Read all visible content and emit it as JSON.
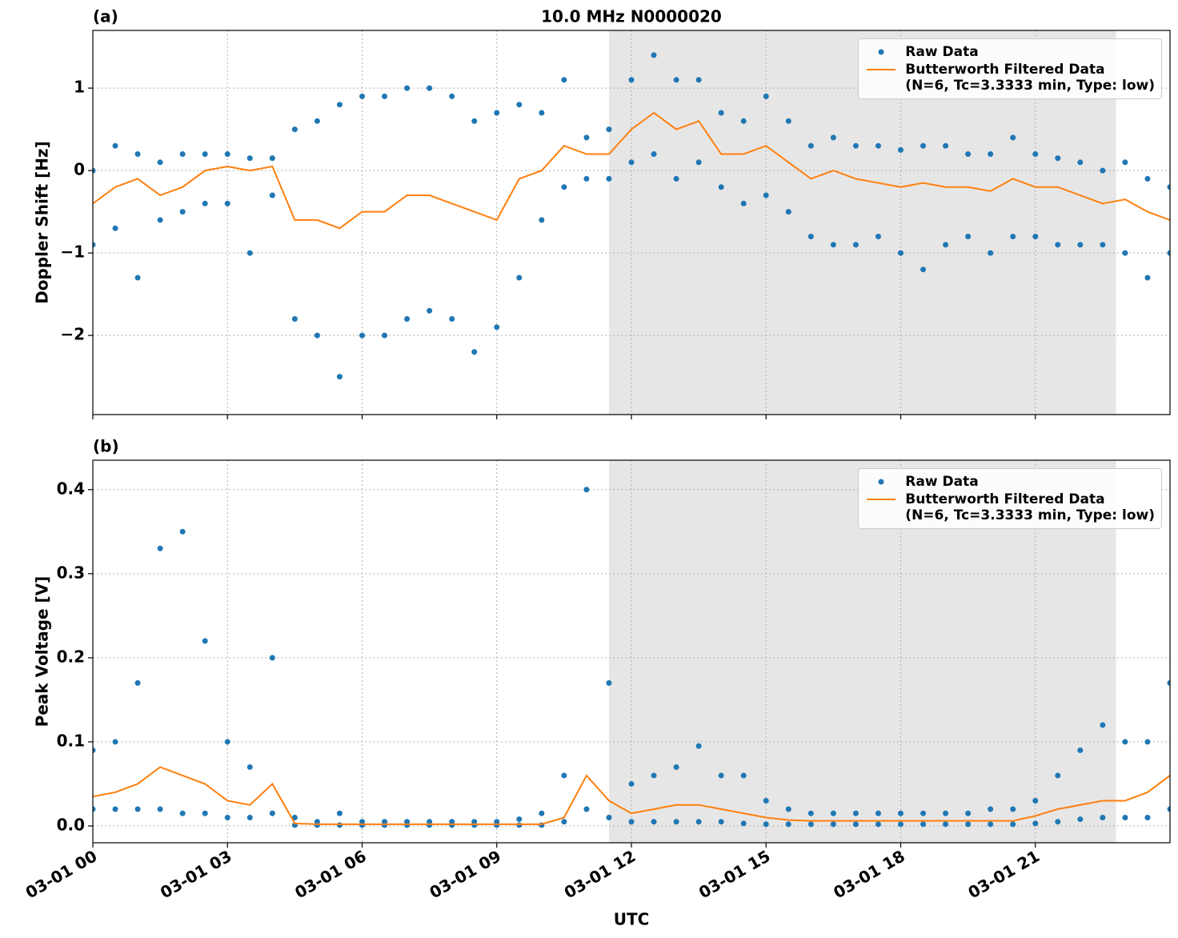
{
  "chart_data": [
    {
      "type": "line",
      "title": "10.0 MHz N0000020",
      "panel_label": "(a)",
      "ylabel": "Doppler Shift [Hz]",
      "xlim": [
        0,
        24
      ],
      "xticks": [
        0,
        3,
        6,
        9,
        12,
        15,
        18,
        21
      ],
      "ylim": [
        -2.96,
        1.7
      ],
      "yticks": [
        {
          "value": -2,
          "label": "−2"
        },
        {
          "value": -1,
          "label": "−1"
        },
        0,
        1
      ],
      "grid": true,
      "legend": "upper right",
      "shaded_span": [
        11.5,
        22.8
      ],
      "shade_color": "#e6e6e6",
      "series": [
        {
          "name": "Raw Data",
          "style": "points",
          "color": "#1f77b4",
          "x": [
            0,
            0.5,
            1,
            1.5,
            2,
            2.5,
            3,
            3.5,
            4,
            4.5,
            5,
            5.5,
            6,
            6.5,
            7,
            7.5,
            8,
            8.5,
            9,
            9.5,
            10,
            10.5,
            11,
            11.5,
            12,
            12.5,
            13,
            13.5,
            14,
            14.5,
            15,
            15.5,
            16,
            16.5,
            17,
            17.5,
            18,
            18.5,
            19,
            19.5,
            20,
            20.5,
            21,
            21.5,
            22,
            22.5,
            23,
            23.5,
            24,
            0,
            0.5,
            1,
            1.5,
            2,
            2.5,
            3,
            3.5,
            4,
            4.5,
            5,
            5.5,
            6,
            6.5,
            7,
            7.5,
            8,
            8.5,
            9,
            9.5,
            10,
            10.5,
            11,
            11.5,
            12,
            12.5,
            13,
            13.5,
            14,
            14.5,
            15,
            15.5,
            16,
            16.5,
            17,
            17.5,
            18,
            18.5,
            19,
            19.5,
            20,
            20.5,
            21,
            21.5,
            22,
            22.5,
            23,
            23.5,
            24
          ],
          "values": [
            0.0,
            0.3,
            0.2,
            0.1,
            0.2,
            0.2,
            0.2,
            0.15,
            0.15,
            0.5,
            0.6,
            0.8,
            0.9,
            0.9,
            1.0,
            1.0,
            0.9,
            0.6,
            0.7,
            0.8,
            0.7,
            1.1,
            0.4,
            0.5,
            1.1,
            1.4,
            1.1,
            1.1,
            0.7,
            0.6,
            0.9,
            0.6,
            0.3,
            0.4,
            0.3,
            0.3,
            0.25,
            0.3,
            0.3,
            0.2,
            0.2,
            0.4,
            0.2,
            0.15,
            0.1,
            0.0,
            0.1,
            -0.1,
            -0.2,
            -0.9,
            -0.7,
            -1.3,
            -0.6,
            -0.5,
            -0.4,
            -0.4,
            -1.0,
            -0.3,
            -1.8,
            -2.0,
            -2.5,
            -2.0,
            -2.0,
            -1.8,
            -1.7,
            -1.8,
            -2.2,
            -1.9,
            -1.3,
            -0.6,
            -0.2,
            -0.1,
            -0.1,
            0.1,
            0.2,
            -0.1,
            0.1,
            -0.2,
            -0.4,
            -0.3,
            -0.5,
            -0.8,
            -0.9,
            -0.9,
            -0.8,
            -1.0,
            -1.2,
            -0.9,
            -0.8,
            -1.0,
            -0.8,
            -0.8,
            -0.9,
            -0.9,
            -0.9,
            -1.0,
            -1.3,
            -1.0
          ]
        },
        {
          "name": "Butterworth Filtered Data\n(N=6, Tc=3.3333 min, Type: low)",
          "style": "line",
          "color": "#ff7f0e",
          "x": [
            0,
            0.5,
            1,
            1.5,
            2,
            2.5,
            3,
            3.5,
            4,
            4.5,
            5,
            5.5,
            6,
            6.5,
            7,
            7.5,
            8,
            8.5,
            9,
            9.5,
            10,
            10.5,
            11,
            11.5,
            12,
            12.5,
            13,
            13.5,
            14,
            14.5,
            15,
            15.5,
            16,
            16.5,
            17,
            17.5,
            18,
            18.5,
            19,
            19.5,
            20,
            20.5,
            21,
            21.5,
            22,
            22.5,
            23,
            23.5,
            24
          ],
          "values": [
            -0.4,
            -0.2,
            -0.1,
            -0.3,
            -0.2,
            0.0,
            0.05,
            0.0,
            0.05,
            -0.6,
            -0.6,
            -0.7,
            -0.5,
            -0.5,
            -0.3,
            -0.3,
            -0.4,
            -0.5,
            -0.6,
            -0.1,
            0.0,
            0.3,
            0.2,
            0.2,
            0.5,
            0.7,
            0.5,
            0.6,
            0.2,
            0.2,
            0.3,
            0.1,
            -0.1,
            0.0,
            -0.1,
            -0.15,
            -0.2,
            -0.15,
            -0.2,
            -0.2,
            -0.25,
            -0.1,
            -0.2,
            -0.2,
            -0.3,
            -0.4,
            -0.35,
            -0.5,
            -0.6
          ]
        }
      ]
    },
    {
      "type": "line",
      "panel_label": "(b)",
      "ylabel": "Peak Voltage [V]",
      "xlabel": "UTC",
      "xlim": [
        0,
        24
      ],
      "xticks": [
        {
          "value": 0,
          "label": "03-01 00"
        },
        {
          "value": 3,
          "label": "03-01 03"
        },
        {
          "value": 6,
          "label": "03-01 06"
        },
        {
          "value": 9,
          "label": "03-01 09"
        },
        {
          "value": 12,
          "label": "03-01 12"
        },
        {
          "value": 15,
          "label": "03-01 15"
        },
        {
          "value": 18,
          "label": "03-01 18"
        },
        {
          "value": 21,
          "label": "03-01 21"
        }
      ],
      "ylim": [
        -0.02,
        0.435
      ],
      "yticks": [
        {
          "value": 0,
          "label": "0.0"
        },
        0.1,
        0.2,
        0.3,
        0.4
      ],
      "grid": true,
      "legend": "upper right",
      "shaded_span": [
        11.5,
        22.8
      ],
      "shade_color": "#e6e6e6",
      "series": [
        {
          "name": "Raw Data",
          "style": "points",
          "color": "#1f77b4",
          "x": [
            0,
            0.5,
            1,
            1.5,
            2,
            2.5,
            3,
            3.5,
            4,
            4.5,
            5,
            5.5,
            6,
            6.5,
            7,
            7.5,
            8,
            8.5,
            9,
            9.5,
            10,
            10.5,
            11,
            11.5,
            12,
            12.5,
            13,
            13.5,
            14,
            14.5,
            15,
            15.5,
            16,
            16.5,
            17,
            17.5,
            18,
            18.5,
            19,
            19.5,
            20,
            20.5,
            21,
            21.5,
            22,
            22.5,
            23,
            23.5,
            24,
            0,
            0.5,
            1,
            1.5,
            2,
            2.5,
            3,
            3.5,
            4,
            4.5,
            5,
            5.5,
            6,
            6.5,
            7,
            7.5,
            8,
            8.5,
            9,
            9.5,
            10,
            10.5,
            11,
            11.5,
            12,
            12.5,
            13,
            13.5,
            14,
            14.5,
            15,
            15.5,
            16,
            16.5,
            17,
            17.5,
            18,
            18.5,
            19,
            19.5,
            20,
            20.5,
            21,
            21.5,
            22,
            22.5,
            23,
            23.5,
            24
          ],
          "values": [
            0.09,
            0.1,
            0.17,
            0.33,
            0.35,
            0.22,
            0.1,
            0.07,
            0.2,
            0.01,
            0.005,
            0.015,
            0.005,
            0.005,
            0.005,
            0.005,
            0.005,
            0.005,
            0.005,
            0.008,
            0.015,
            0.06,
            0.4,
            0.17,
            0.05,
            0.06,
            0.07,
            0.095,
            0.06,
            0.06,
            0.03,
            0.02,
            0.015,
            0.015,
            0.015,
            0.015,
            0.015,
            0.015,
            0.015,
            0.015,
            0.02,
            0.02,
            0.03,
            0.06,
            0.09,
            0.12,
            0.1,
            0.1,
            0.17,
            0.02,
            0.02,
            0.02,
            0.02,
            0.015,
            0.015,
            0.01,
            0.01,
            0.015,
            0.001,
            0.001,
            0.001,
            0.001,
            0.001,
            0.001,
            0.001,
            0.001,
            0.001,
            0.001,
            0.001,
            0.001,
            0.005,
            0.02,
            0.01,
            0.005,
            0.005,
            0.005,
            0.005,
            0.005,
            0.003,
            0.002,
            0.002,
            0.002,
            0.002,
            0.002,
            0.002,
            0.002,
            0.002,
            0.002,
            0.002,
            0.002,
            0.002,
            0.003,
            0.005,
            0.008,
            0.01,
            0.01,
            0.01,
            0.02
          ]
        },
        {
          "name": "Butterworth Filtered Data\n(N=6, Tc=3.3333 min, Type: low)",
          "style": "line",
          "color": "#ff7f0e",
          "x": [
            0,
            0.5,
            1,
            1.5,
            2,
            2.5,
            3,
            3.5,
            4,
            4.5,
            5,
            5.5,
            6,
            6.5,
            7,
            7.5,
            8,
            8.5,
            9,
            9.5,
            10,
            10.5,
            11,
            11.5,
            12,
            12.5,
            13,
            13.5,
            14,
            14.5,
            15,
            15.5,
            16,
            16.5,
            17,
            17.5,
            18,
            18.5,
            19,
            19.5,
            20,
            20.5,
            21,
            21.5,
            22,
            22.5,
            23,
            23.5,
            24
          ],
          "values": [
            0.035,
            0.04,
            0.05,
            0.07,
            0.06,
            0.05,
            0.03,
            0.025,
            0.05,
            0.003,
            0.002,
            0.002,
            0.002,
            0.002,
            0.002,
            0.002,
            0.002,
            0.002,
            0.002,
            0.002,
            0.002,
            0.01,
            0.06,
            0.03,
            0.015,
            0.02,
            0.025,
            0.025,
            0.02,
            0.015,
            0.01,
            0.007,
            0.006,
            0.006,
            0.006,
            0.006,
            0.006,
            0.006,
            0.006,
            0.006,
            0.006,
            0.006,
            0.012,
            0.02,
            0.025,
            0.03,
            0.03,
            0.04,
            0.06
          ]
        }
      ]
    }
  ]
}
